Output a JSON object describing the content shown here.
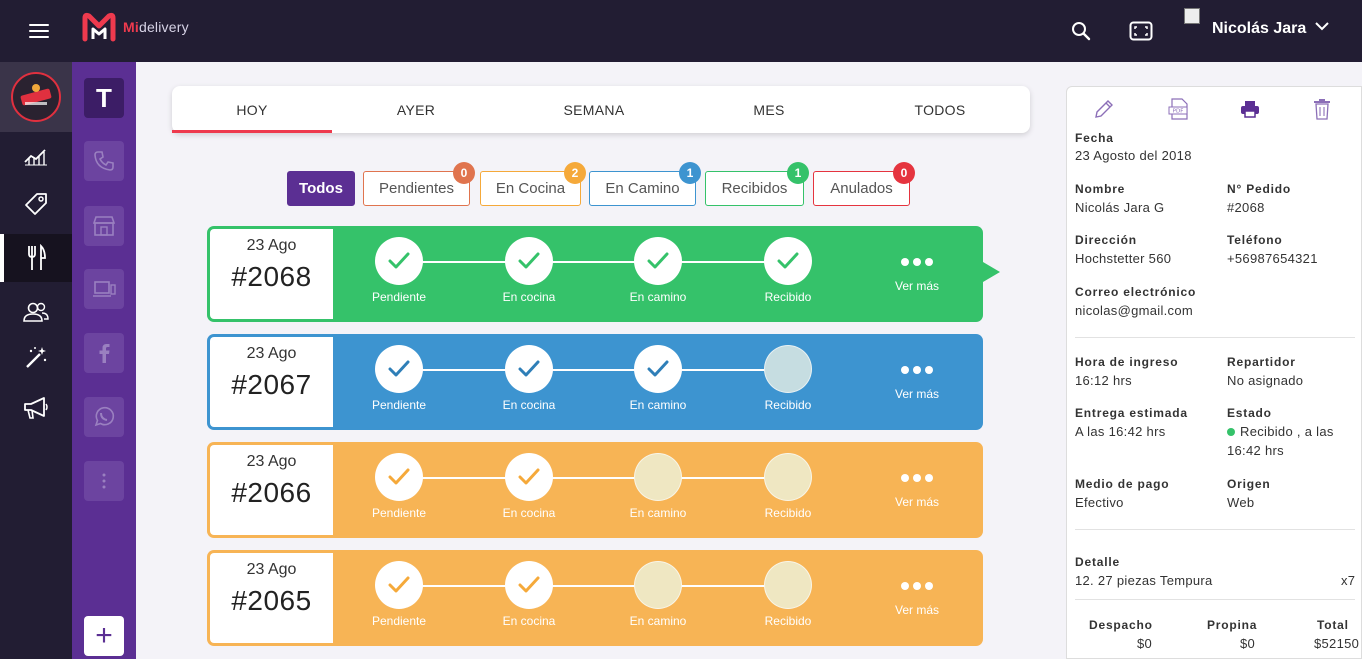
{
  "app": {
    "brand_mi": "Mi",
    "brand_rest": "delivery",
    "user_name": "Nicolás Jara"
  },
  "channels": {
    "t_label": "T",
    "plus_label": "+"
  },
  "tabs": [
    {
      "label": "HOY",
      "active": true
    },
    {
      "label": "AYER",
      "active": false
    },
    {
      "label": "SEMANA",
      "active": false
    },
    {
      "label": "MES",
      "active": false
    },
    {
      "label": "TODOS",
      "active": false
    }
  ],
  "filters": [
    {
      "label": "Todos",
      "count": null,
      "color": "#5b2f93"
    },
    {
      "label": "Pendientes",
      "count": "0",
      "color": "#e0744e"
    },
    {
      "label": "En Cocina",
      "count": "2",
      "color": "#f5a93a"
    },
    {
      "label": "En Camino",
      "count": "1",
      "color": "#3d94d0"
    },
    {
      "label": "Recibidos",
      "count": "1",
      "color": "#35c26a"
    },
    {
      "label": "Anulados",
      "count": "0",
      "color": "#e5343f"
    }
  ],
  "orders": [
    {
      "day": "23 Ago",
      "number": "#2068",
      "color": "#35c26a",
      "check_color": "#35c26a",
      "pending_color": "#ffffff",
      "steps_done": 4
    },
    {
      "day": "23 Ago",
      "number": "#2067",
      "color": "#3d94d0",
      "check_color": "#2f7fb8",
      "pending_color": "#c6dde1",
      "steps_done": 3
    },
    {
      "day": "23 Ago",
      "number": "#2066",
      "color": "#f7b455",
      "check_color": "#f5a93a",
      "pending_color": "#efe7c2",
      "steps_done": 2
    },
    {
      "day": "23 Ago",
      "number": "#2065",
      "color": "#f7b455",
      "check_color": "#f5a93a",
      "pending_color": "#efe7c2",
      "steps_done": 2
    }
  ],
  "step_labels": [
    "Pendiente",
    "En cocina",
    "En camino",
    "Recibido"
  ],
  "more_label": "Ver más",
  "detail": {
    "fecha_label": "Fecha",
    "fecha": "23 Agosto del 2018",
    "nombre_label": "Nombre",
    "nombre": "Nicolás Jara G",
    "pedido_label": "N° Pedido",
    "pedido": "#2068",
    "direccion_label": "Dirección",
    "direccion": "Hochstetter 560",
    "telefono_label": "Teléfono",
    "telefono": "+56987654321",
    "correo_label": "Correo electrónico",
    "correo": "nicolas@gmail.com",
    "ingreso_label": "Hora de ingreso",
    "ingreso": "16:12 hrs",
    "repartidor_label": "Repartidor",
    "repartidor": "No asignado",
    "entrega_label": "Entrega estimada",
    "entrega": "A las 16:42 hrs",
    "estado_label": "Estado",
    "estado_line1": "Recibido , a las",
    "estado_line2": "16:42 hrs",
    "pago_label": "Medio de pago",
    "pago": "Efectivo",
    "origen_label": "Origen",
    "origen": "Web",
    "detalle_label": "Detalle",
    "item": "12. 27 piezas Tempura",
    "item_qty": "x7",
    "despacho_label": "Despacho",
    "despacho": "$0",
    "propina_label": "Propina",
    "propina": "$0",
    "total_label": "Total",
    "total": "$52150"
  }
}
